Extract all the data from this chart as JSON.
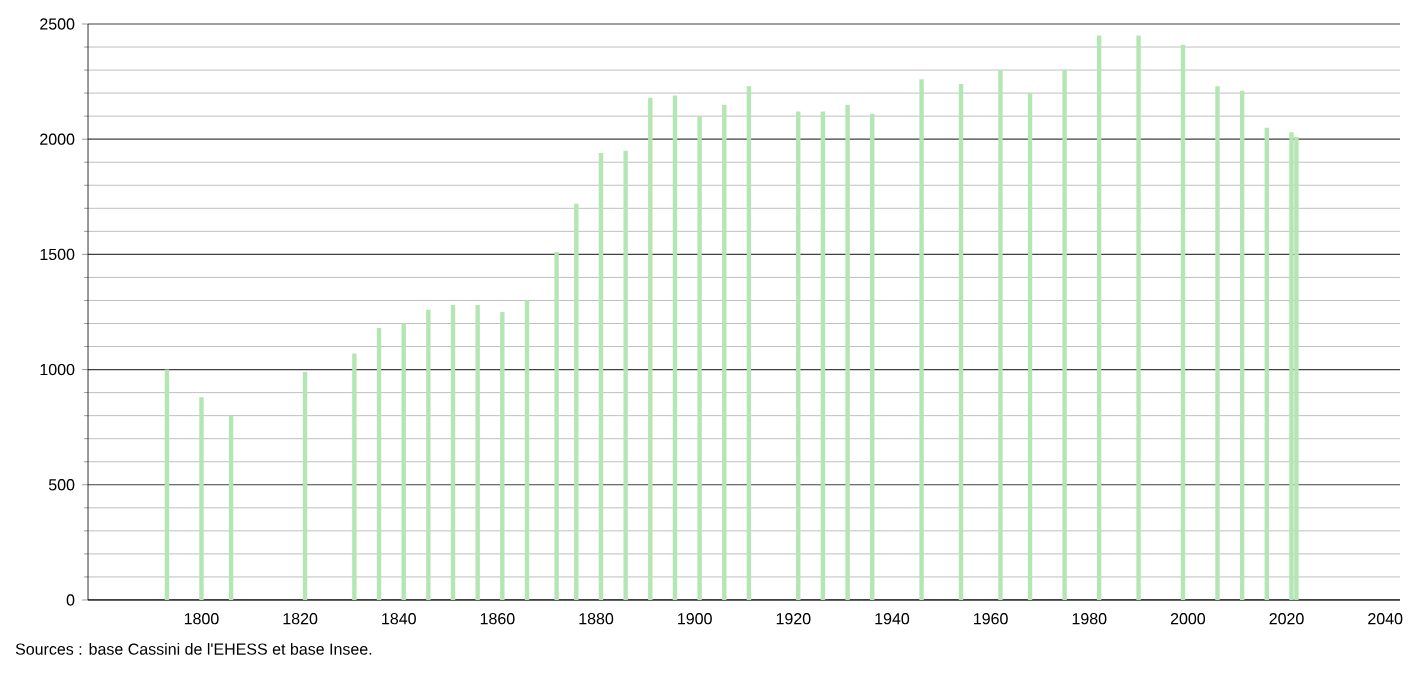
{
  "chart_data": {
    "type": "bar",
    "x": [
      1793,
      1800,
      1806,
      1821,
      1831,
      1836,
      1841,
      1846,
      1851,
      1856,
      1861,
      1866,
      1872,
      1876,
      1881,
      1886,
      1891,
      1896,
      1901,
      1906,
      1911,
      1921,
      1926,
      1931,
      1936,
      1946,
      1954,
      1962,
      1968,
      1975,
      1982,
      1990,
      1999,
      2006,
      2011,
      2016,
      2021,
      2022
    ],
    "values": [
      1000,
      880,
      800,
      990,
      1070,
      1180,
      1200,
      1260,
      1280,
      1280,
      1250,
      1300,
      1510,
      1720,
      1940,
      1950,
      2180,
      2190,
      2100,
      2150,
      2230,
      2120,
      2120,
      2150,
      2110,
      2260,
      2240,
      2300,
      2200,
      2300,
      2450,
      2450,
      2410,
      2230,
      2210,
      2050,
      2030,
      2010
    ],
    "color": "#b3e6b3",
    "xlim": [
      1777,
      2043
    ],
    "ylim": [
      0,
      2500
    ],
    "xticks": [
      1800,
      1820,
      1840,
      1860,
      1880,
      1900,
      1920,
      1940,
      1960,
      1980,
      2000,
      2020,
      2040
    ],
    "yticks": [
      0,
      500,
      1000,
      1500,
      2000,
      2500
    ],
    "grid": "y",
    "annotations": [
      "Sources : base Cassini de l'EHESS et base Insee."
    ]
  }
}
